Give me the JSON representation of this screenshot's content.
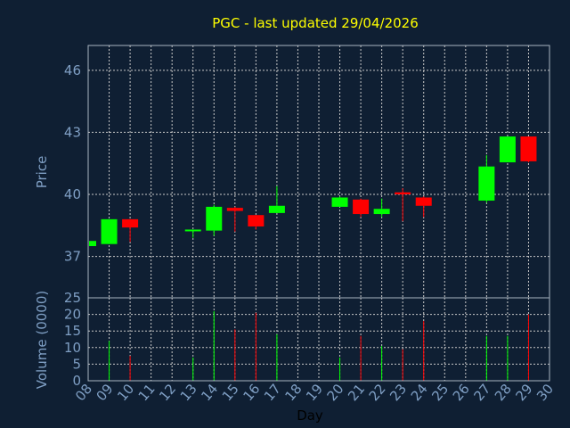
{
  "chart_data": {
    "type": "candlestick",
    "title": "PGC - last updated 29/04/2026",
    "ylabel": "Price",
    "volume_label": "Volume (0000)",
    "xlabel": "Day",
    "colors": {
      "up": "#00ff00",
      "down": "#ff0000",
      "grid": "#c8c8c8",
      "title": "#ffff00",
      "axis_text": "#7f9fc4",
      "background": "#0f1f33"
    },
    "price_ylim": [
      35.0,
      47.2
    ],
    "price_ticks": [
      "37",
      "40",
      "43",
      "46"
    ],
    "volume_ylim": [
      0,
      25
    ],
    "volume_ticks": [
      "0",
      "5",
      "10",
      "15",
      "20",
      "25"
    ],
    "x_range": [
      8,
      30
    ],
    "x_ticks": [
      "08",
      "09",
      "10",
      "11",
      "12",
      "13",
      "14",
      "15",
      "16",
      "17",
      "18",
      "19",
      "20",
      "21",
      "22",
      "23",
      "24",
      "25",
      "26",
      "27",
      "28",
      "29",
      "30"
    ],
    "candles": [
      {
        "day": 8,
        "open": 37.5,
        "high": 37.75,
        "low": 37.5,
        "close": 37.75
      },
      {
        "day": 9,
        "open": 37.6,
        "high": 38.8,
        "low": 37.6,
        "close": 38.8
      },
      {
        "day": 10,
        "open": 38.8,
        "high": 38.8,
        "low": 37.7,
        "close": 38.4
      },
      {
        "day": 13,
        "open": 38.25,
        "high": 38.3,
        "low": 37.9,
        "close": 38.3
      },
      {
        "day": 14,
        "open": 38.25,
        "high": 39.5,
        "low": 38.0,
        "close": 39.4
      },
      {
        "day": 15,
        "open": 39.35,
        "high": 39.4,
        "low": 38.2,
        "close": 39.2
      },
      {
        "day": 16,
        "open": 39.0,
        "high": 39.0,
        "low": 38.3,
        "close": 38.45
      },
      {
        "day": 17,
        "open": 39.1,
        "high": 40.4,
        "low": 39.1,
        "close": 39.45
      },
      {
        "day": 20,
        "open": 39.4,
        "high": 39.9,
        "low": 39.4,
        "close": 39.85
      },
      {
        "day": 21,
        "open": 39.75,
        "high": 39.8,
        "low": 38.9,
        "close": 39.05
      },
      {
        "day": 22,
        "open": 39.05,
        "high": 39.8,
        "low": 38.9,
        "close": 39.3
      },
      {
        "day": 23,
        "open": 40.1,
        "high": 40.3,
        "low": 38.7,
        "close": 40.0
      },
      {
        "day": 24,
        "open": 39.85,
        "high": 39.9,
        "low": 38.9,
        "close": 39.45
      },
      {
        "day": 27,
        "open": 39.7,
        "high": 41.9,
        "low": 39.6,
        "close": 41.35
      },
      {
        "day": 28,
        "open": 41.55,
        "high": 42.8,
        "low": 41.55,
        "close": 42.8
      },
      {
        "day": 29,
        "open": 42.8,
        "high": 42.8,
        "low": 41.55,
        "close": 41.6
      }
    ],
    "volume": [
      {
        "day": 9,
        "value": 12.0,
        "direction": "up"
      },
      {
        "day": 10,
        "value": 7.5,
        "direction": "down"
      },
      {
        "day": 13,
        "value": 7.0,
        "direction": "up"
      },
      {
        "day": 14,
        "value": 21.0,
        "direction": "up"
      },
      {
        "day": 15,
        "value": 15.5,
        "direction": "down"
      },
      {
        "day": 16,
        "value": 20.5,
        "direction": "down"
      },
      {
        "day": 17,
        "value": 14.0,
        "direction": "up"
      },
      {
        "day": 20,
        "value": 7.0,
        "direction": "up"
      },
      {
        "day": 21,
        "value": 13.5,
        "direction": "down"
      },
      {
        "day": 22,
        "value": 10.5,
        "direction": "up"
      },
      {
        "day": 23,
        "value": 9.5,
        "direction": "down"
      },
      {
        "day": 24,
        "value": 18.0,
        "direction": "down"
      },
      {
        "day": 27,
        "value": 13.5,
        "direction": "up"
      },
      {
        "day": 28,
        "value": 13.5,
        "direction": "up"
      },
      {
        "day": 29,
        "value": 20.0,
        "direction": "down"
      }
    ],
    "grid": true
  }
}
